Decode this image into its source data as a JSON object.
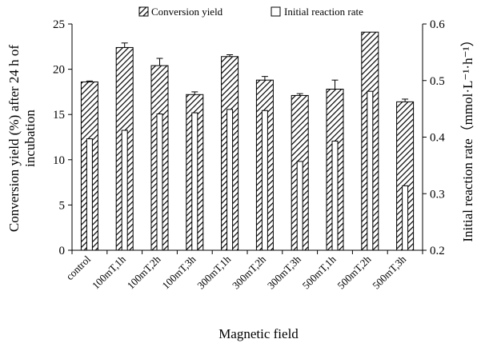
{
  "chart_data": {
    "type": "bar",
    "title": "",
    "xlabel": "Magnetic field",
    "ylabel_left_line1": "Conversion yield (%) after  24 h of",
    "ylabel_left_line2": "incubation",
    "ylabel_right": "Initial reaction rate（mmol·L⁻¹·h⁻¹）",
    "categories": [
      "control",
      "100mT,1h",
      "100mT,2h",
      "100mT,3h",
      "300mT,1h",
      "300mT,2h",
      "300mT,3h",
      "500mT,1h",
      "500mT,2h",
      "500mT,3h"
    ],
    "left_axis": {
      "min": 0,
      "max": 25,
      "ticks": [
        "0",
        "5",
        "10",
        "15",
        "20",
        "25"
      ]
    },
    "right_axis": {
      "min": 0.2,
      "max": 0.6,
      "ticks": [
        "0.2",
        "0.3",
        "0.4",
        "0.5",
        "0.6"
      ]
    },
    "series": [
      {
        "name": "Conversion yield",
        "axis": "left",
        "pattern": "diagonal-hatch",
        "values": [
          18.6,
          22.4,
          20.4,
          17.2,
          21.4,
          18.8,
          17.1,
          17.8,
          24.1,
          16.4
        ],
        "errors": [
          0.1,
          0.5,
          0.8,
          0.3,
          0.2,
          0.4,
          0.2,
          1.0,
          0.0,
          0.3
        ]
      },
      {
        "name": "Initial reaction rate",
        "axis": "right",
        "pattern": "open",
        "values": [
          0.397,
          0.412,
          0.441,
          0.443,
          0.449,
          0.447,
          0.357,
          0.393,
          0.481,
          0.314
        ]
      }
    ],
    "legend_position": "top",
    "grid": false
  }
}
